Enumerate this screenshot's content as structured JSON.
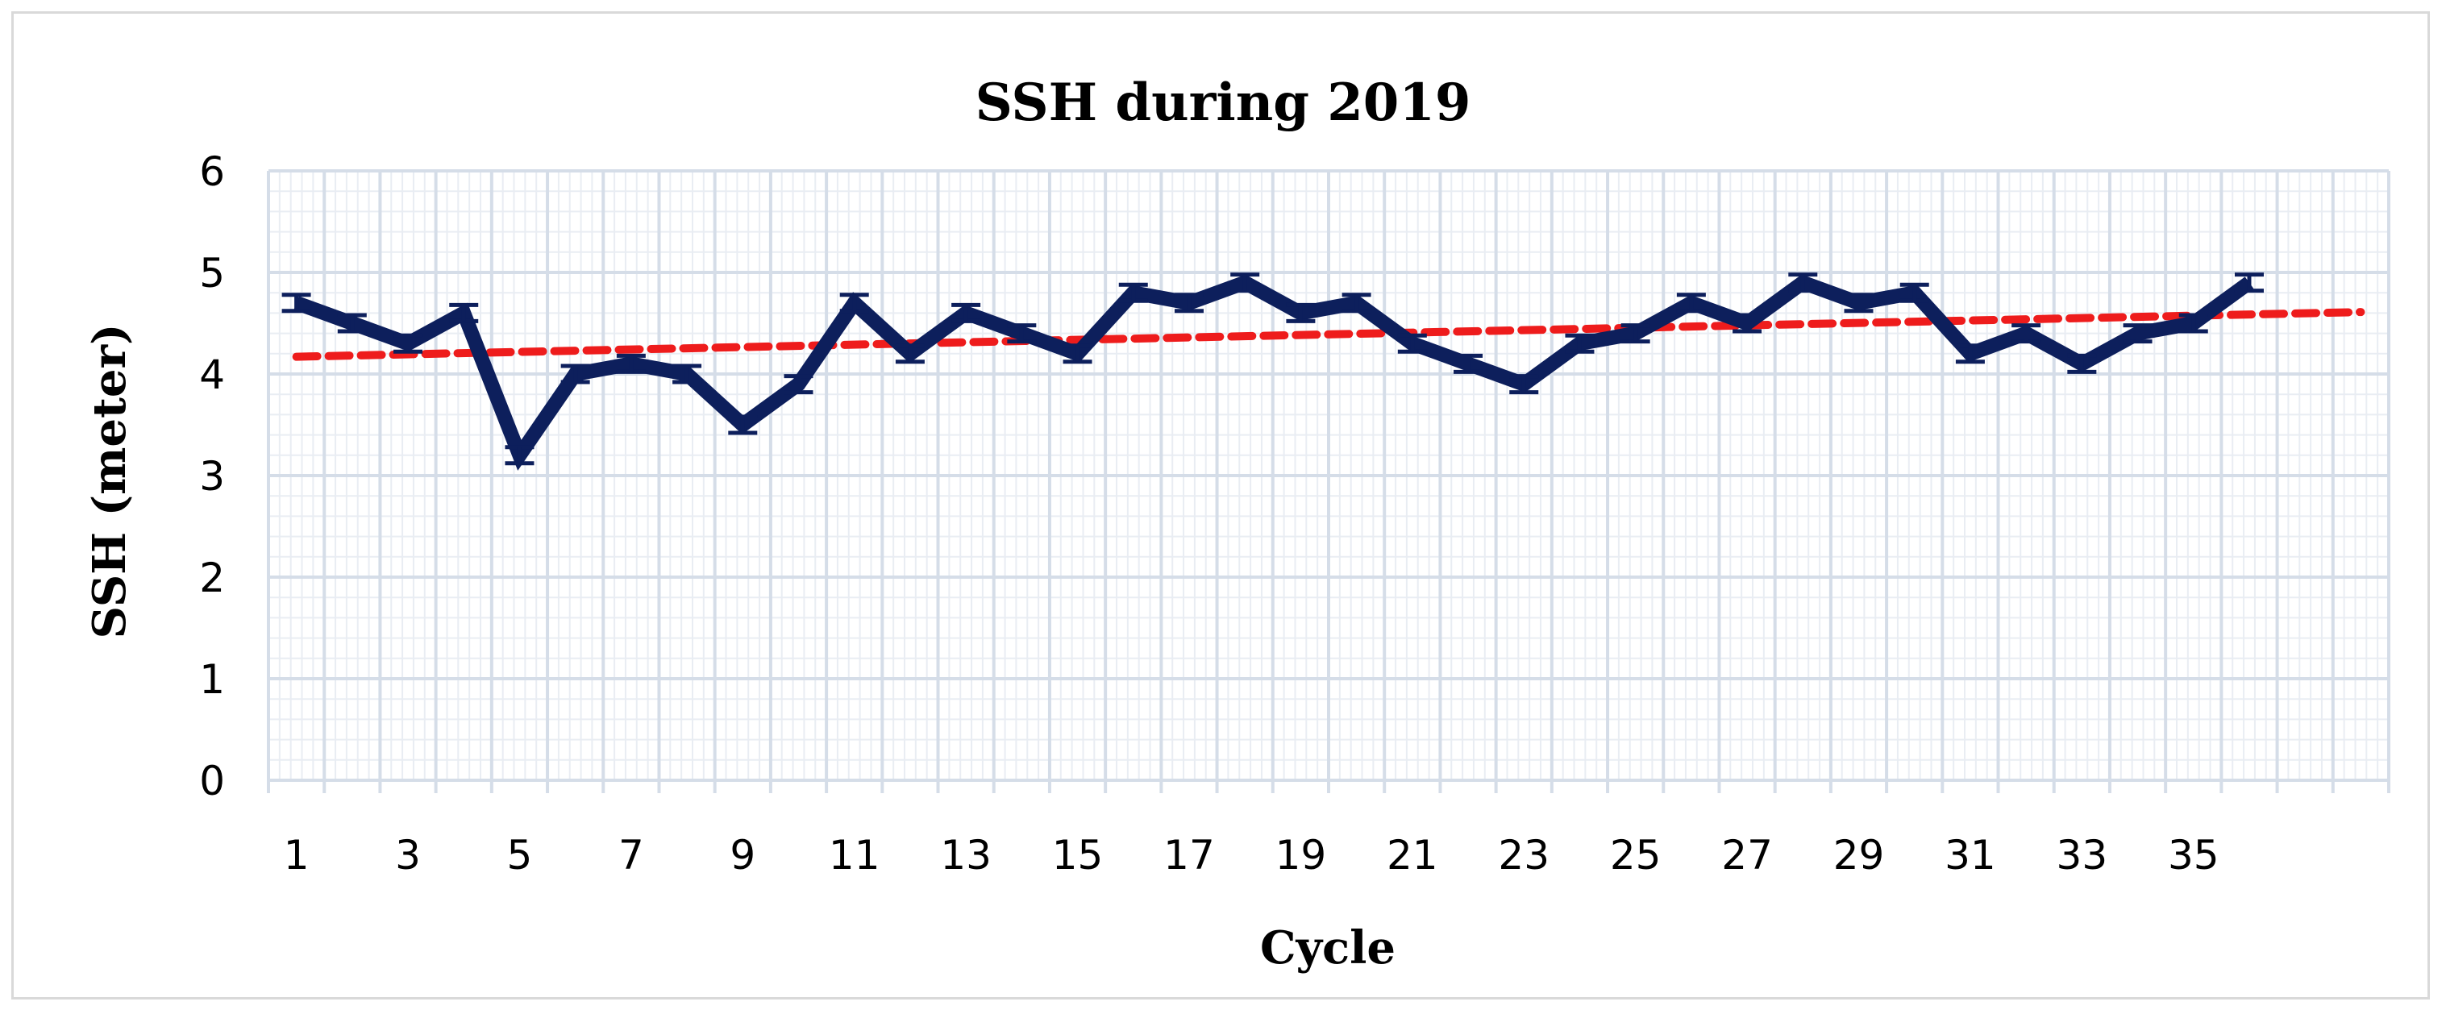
{
  "chart_data": {
    "type": "line",
    "title": "SSH during 2019",
    "xlabel": "Cycle",
    "ylabel": "SSH (meter)",
    "ylim": [
      0,
      6
    ],
    "yticks": [
      0,
      1,
      2,
      3,
      4,
      5,
      6
    ],
    "x_categories": 38,
    "xtick_labels": [
      "1",
      "3",
      "5",
      "7",
      "9",
      "11",
      "13",
      "15",
      "17",
      "19",
      "21",
      "23",
      "25",
      "27",
      "29",
      "31",
      "33",
      "35"
    ],
    "series": [
      {
        "name": "SSH",
        "color": "#0d1f5c",
        "x": [
          1,
          2,
          3,
          4,
          5,
          6,
          7,
          8,
          9,
          10,
          11,
          12,
          13,
          14,
          15,
          16,
          17,
          18,
          19,
          20,
          21,
          22,
          23,
          24,
          25,
          26,
          27,
          28,
          29,
          30,
          31,
          32,
          33,
          34,
          35,
          36
        ],
        "values": [
          4.7,
          4.5,
          4.3,
          4.6,
          3.2,
          4.0,
          4.1,
          4.0,
          3.5,
          3.9,
          4.7,
          4.2,
          4.6,
          4.4,
          4.2,
          4.8,
          4.7,
          4.9,
          4.6,
          4.7,
          4.3,
          4.1,
          3.9,
          4.3,
          4.4,
          4.7,
          4.5,
          4.9,
          4.7,
          4.8,
          4.2,
          4.4,
          4.1,
          4.4,
          4.5,
          4.9
        ]
      }
    ],
    "trendline": {
      "name": "Linear trend",
      "color": "#ee1c1c",
      "style": "dashed",
      "x": [
        1,
        38
      ],
      "values": [
        4.17,
        4.61
      ]
    },
    "grid": true,
    "minor_grid": true
  }
}
